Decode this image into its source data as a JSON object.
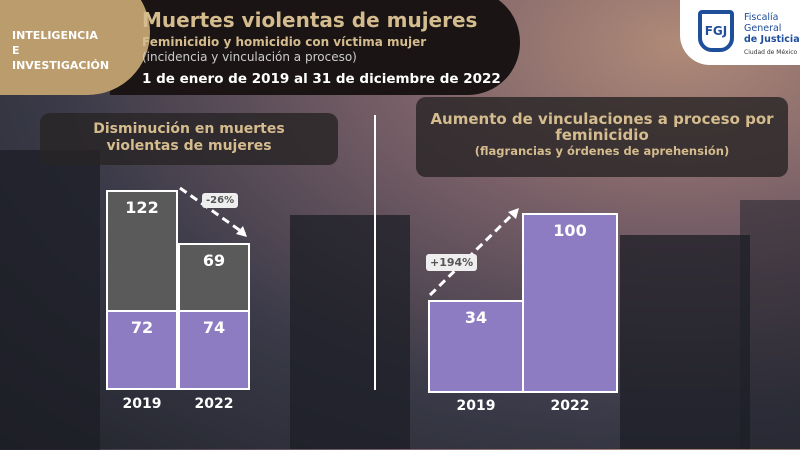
{
  "header": {
    "section": "INTELIGENCIA E INVESTIGACIÓN",
    "title": "Muertes violentas de mujeres",
    "subtitle": "Feminicidio y homicidio con víctima mujer",
    "subtitle2": "(incidencia y vinculación a proceso)",
    "period": "1 de enero de 2019 al 31 de diciembre de 2022"
  },
  "logo": {
    "mark": "FGJ",
    "line1": "Fiscalía",
    "line2": "General",
    "line3": "de Justicia",
    "line4": "Ciudad de México"
  },
  "chart_data": [
    {
      "type": "bar",
      "stacked": true,
      "title": "Disminución en muertes violentas de mujeres",
      "categories": [
        "2019",
        "2022"
      ],
      "series": [
        {
          "values": [
            72,
            74
          ],
          "color": "#8e7cc3"
        },
        {
          "values": [
            122,
            69
          ],
          "color": "#5a5a5a"
        }
      ],
      "annotation": "-26%"
    },
    {
      "type": "bar",
      "title": "Aumento de vinculaciones a proceso por feminicidio",
      "subtitle": "(flagrancias y órdenes de aprehensión)",
      "categories": [
        "2019",
        "2022"
      ],
      "series": [
        {
          "values": [
            34,
            100
          ],
          "color": "#8e7cc3"
        }
      ],
      "annotation": "+194%"
    }
  ]
}
